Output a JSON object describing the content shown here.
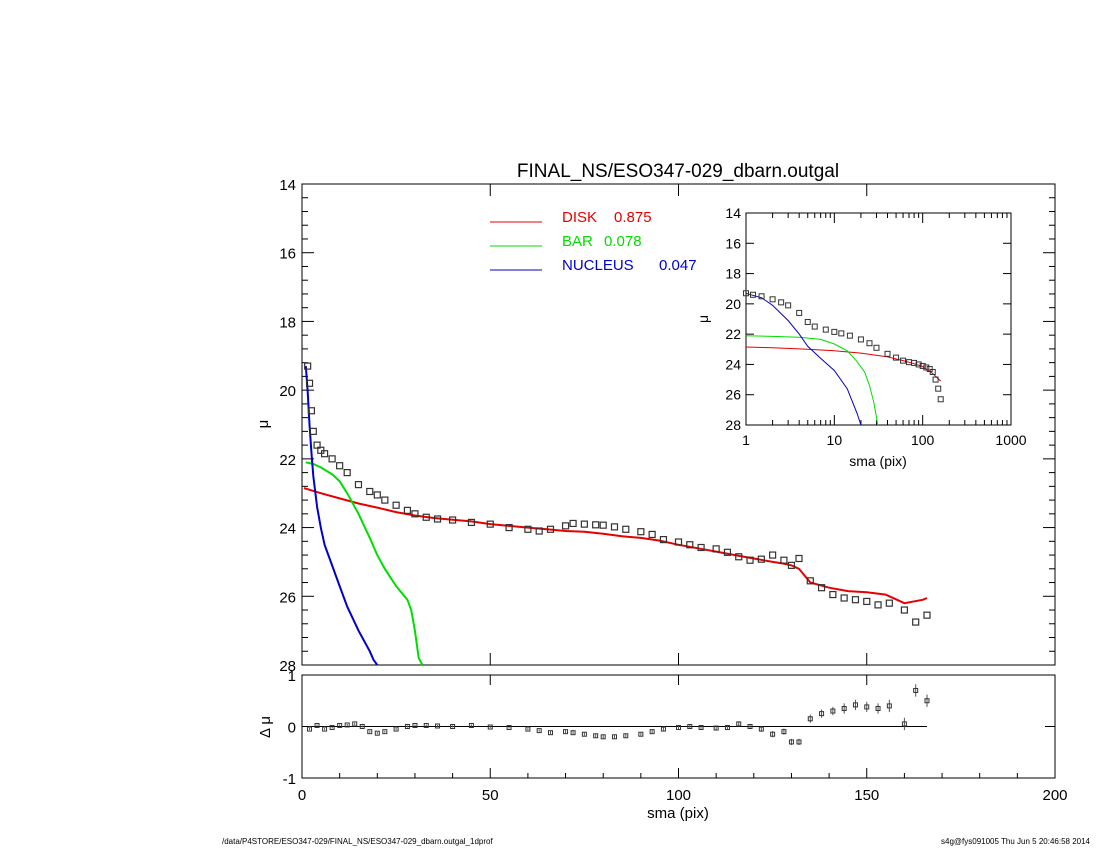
{
  "chart_data": {
    "type": "line",
    "title": "FINAL_NS/ESO347-029_dbarn.outgal",
    "main": {
      "xlabel": "sma (pix)",
      "ylabel": "μ",
      "xlim": [
        0,
        200
      ],
      "ylim": [
        28,
        14
      ],
      "xticks": [
        0,
        50,
        100,
        150,
        200
      ],
      "yticks": [
        14,
        16,
        18,
        20,
        22,
        24,
        26,
        28
      ],
      "legend": [
        {
          "label": "DISK",
          "value": "0.875",
          "color": "#e60000"
        },
        {
          "label": "BAR",
          "value": "0.078",
          "color": "#00dd00"
        },
        {
          "label": "NUCLEUS",
          "value": "0.047",
          "color": "#0000cc"
        }
      ],
      "series": [
        {
          "name": "DISK",
          "color": "#e60000",
          "x": [
            0.5,
            5,
            10,
            15,
            20,
            25,
            30,
            35,
            40,
            45,
            50,
            55,
            60,
            65,
            70,
            75,
            80,
            85,
            90,
            95,
            100,
            105,
            110,
            115,
            120,
            125,
            128,
            130,
            132,
            135,
            140,
            145,
            150,
            155,
            160,
            165,
            166
          ],
          "y": [
            22.85,
            23.0,
            23.15,
            23.3,
            23.42,
            23.55,
            23.65,
            23.72,
            23.77,
            23.82,
            23.9,
            23.95,
            24.0,
            24.05,
            24.1,
            24.12,
            24.18,
            24.25,
            24.3,
            24.38,
            24.5,
            24.6,
            24.7,
            24.8,
            24.9,
            25.0,
            25.05,
            25.1,
            25.2,
            25.6,
            25.75,
            25.85,
            25.88,
            25.95,
            26.2,
            26.1,
            26.05
          ]
        },
        {
          "name": "BAR",
          "color": "#00dd00",
          "x": [
            1,
            3,
            5,
            8,
            10,
            12,
            15,
            18,
            20,
            22,
            25,
            28,
            29,
            30,
            31,
            32
          ],
          "y": [
            22.1,
            22.15,
            22.25,
            22.45,
            22.65,
            23.0,
            23.6,
            24.3,
            24.8,
            25.2,
            25.7,
            26.1,
            26.4,
            27.0,
            27.8,
            28.0
          ]
        },
        {
          "name": "NUCLEUS",
          "color": "#0000cc",
          "x": [
            1,
            1.5,
            2,
            2.5,
            3,
            4,
            5,
            6,
            8,
            10,
            12,
            15,
            18,
            19,
            20
          ],
          "y": [
            19.3,
            20.0,
            21.0,
            21.8,
            22.5,
            23.4,
            24.0,
            24.5,
            25.1,
            25.7,
            26.3,
            27.0,
            27.6,
            27.85,
            28.0
          ]
        },
        {
          "name": "observed",
          "marker": "square",
          "x": [
            1.5,
            2,
            2.5,
            3,
            4,
            5,
            6,
            8,
            10,
            12,
            15,
            18,
            20,
            22,
            25,
            28,
            30,
            33,
            36,
            40,
            45,
            50,
            55,
            60,
            63,
            66,
            70,
            72,
            75,
            78,
            80,
            83,
            86,
            90,
            93,
            96,
            100,
            103,
            106,
            110,
            113,
            116,
            119,
            122,
            125,
            128,
            130,
            132,
            135,
            138,
            141,
            144,
            147,
            150,
            153,
            156,
            160,
            163,
            166
          ],
          "y": [
            19.3,
            19.8,
            20.6,
            21.2,
            21.6,
            21.75,
            21.85,
            22.0,
            22.2,
            22.4,
            22.75,
            22.95,
            23.05,
            23.2,
            23.35,
            23.5,
            23.6,
            23.7,
            23.75,
            23.78,
            23.85,
            23.9,
            24.0,
            24.05,
            24.1,
            24.05,
            23.95,
            23.88,
            23.9,
            23.92,
            23.93,
            23.98,
            24.05,
            24.12,
            24.2,
            24.35,
            24.42,
            24.5,
            24.58,
            24.62,
            24.72,
            24.85,
            24.95,
            24.92,
            24.8,
            24.95,
            25.1,
            24.9,
            25.55,
            25.75,
            25.95,
            26.05,
            26.1,
            26.15,
            26.25,
            26.2,
            26.4,
            26.75,
            26.55
          ]
        }
      ]
    },
    "residual": {
      "xlabel": "sma (pix)",
      "ylabel": "Δ μ",
      "xlim": [
        0,
        200
      ],
      "ylim": [
        -1,
        1
      ],
      "yticks": [
        -1,
        0,
        1
      ],
      "x": [
        2,
        4,
        6,
        8,
        10,
        12,
        14,
        16,
        18,
        20,
        22,
        25,
        28,
        30,
        33,
        36,
        40,
        45,
        50,
        55,
        60,
        63,
        66,
        70,
        72,
        75,
        78,
        80,
        83,
        86,
        90,
        93,
        96,
        100,
        103,
        106,
        110,
        113,
        116,
        119,
        122,
        125,
        128,
        130,
        132,
        135,
        138,
        141,
        144,
        147,
        150,
        153,
        156,
        160,
        163,
        166
      ],
      "y": [
        -0.05,
        0.02,
        -0.05,
        -0.02,
        0.02,
        0.03,
        0.05,
        0.0,
        -0.1,
        -0.13,
        -0.1,
        -0.05,
        0.0,
        0.02,
        0.02,
        0.01,
        0.0,
        0.02,
        -0.01,
        -0.02,
        -0.05,
        -0.08,
        -0.12,
        -0.1,
        -0.12,
        -0.15,
        -0.18,
        -0.2,
        -0.2,
        -0.18,
        -0.15,
        -0.1,
        -0.05,
        -0.02,
        0.0,
        -0.02,
        -0.03,
        -0.02,
        0.05,
        0.0,
        -0.05,
        -0.15,
        -0.1,
        -0.3,
        -0.3,
        0.15,
        0.25,
        0.3,
        0.35,
        0.42,
        0.38,
        0.35,
        0.4,
        0.05,
        0.7,
        0.5
      ],
      "err": [
        0.02,
        0.02,
        0.02,
        0.02,
        0.02,
        0.02,
        0.02,
        0.02,
        0.02,
        0.02,
        0.02,
        0.02,
        0.02,
        0.02,
        0.02,
        0.02,
        0.02,
        0.02,
        0.02,
        0.02,
        0.02,
        0.02,
        0.03,
        0.03,
        0.03,
        0.03,
        0.03,
        0.03,
        0.03,
        0.03,
        0.03,
        0.03,
        0.03,
        0.03,
        0.04,
        0.04,
        0.04,
        0.04,
        0.05,
        0.05,
        0.05,
        0.06,
        0.06,
        0.06,
        0.06,
        0.08,
        0.08,
        0.08,
        0.1,
        0.1,
        0.1,
        0.1,
        0.12,
        0.12,
        0.12,
        0.12
      ]
    },
    "inset": {
      "xlabel": "sma (pix)",
      "ylabel": "μ",
      "xscale": "log",
      "xlim": [
        1,
        1000
      ],
      "ylim": [
        28,
        14
      ],
      "xticks": [
        1,
        10,
        100,
        1000
      ],
      "xtick_labels": [
        "1",
        "10",
        "100",
        "1000"
      ],
      "yticks": [
        14,
        16,
        18,
        20,
        22,
        24,
        26,
        28
      ],
      "disk": {
        "x": [
          1,
          2,
          5,
          10,
          20,
          40,
          60,
          80,
          100,
          130,
          160
        ],
        "y": [
          22.85,
          22.9,
          23.0,
          23.1,
          23.25,
          23.5,
          23.75,
          23.95,
          24.15,
          24.6,
          25.1
        ]
      },
      "bar": {
        "x": [
          1,
          2,
          4,
          7,
          10,
          14,
          18,
          22,
          25,
          28,
          30,
          31
        ],
        "y": [
          22.1,
          22.15,
          22.2,
          22.35,
          22.65,
          23.1,
          23.8,
          24.5,
          25.4,
          26.5,
          27.5,
          28.0
        ]
      },
      "nucleus": {
        "x": [
          1,
          1.5,
          2,
          3,
          4,
          5,
          7,
          10,
          14,
          18,
          20
        ],
        "y": [
          19.3,
          19.6,
          20.1,
          21.1,
          22.0,
          22.8,
          23.6,
          24.4,
          25.6,
          27.2,
          28.0
        ]
      },
      "observed": {
        "x": [
          1,
          1.2,
          1.5,
          2,
          2.5,
          3,
          4,
          5,
          6,
          8,
          10,
          12,
          15,
          20,
          25,
          30,
          40,
          50,
          60,
          70,
          80,
          90,
          100,
          110,
          120,
          130,
          140,
          150,
          160
        ],
        "y": [
          19.3,
          19.4,
          19.5,
          19.7,
          19.9,
          20.1,
          20.6,
          21.2,
          21.5,
          21.7,
          21.85,
          21.95,
          22.1,
          22.35,
          22.6,
          22.9,
          23.3,
          23.55,
          23.75,
          23.85,
          23.9,
          24.0,
          24.1,
          24.2,
          24.3,
          24.5,
          25.0,
          25.6,
          26.3
        ]
      }
    }
  },
  "footer": {
    "left": "/data/P4STORE/ESO347-029/FINAL_NS/ESO347-029_dbarn.outgal_1dprof",
    "right": "s4g@fys091005  Thu Jun  5 20:46:58 2014"
  }
}
